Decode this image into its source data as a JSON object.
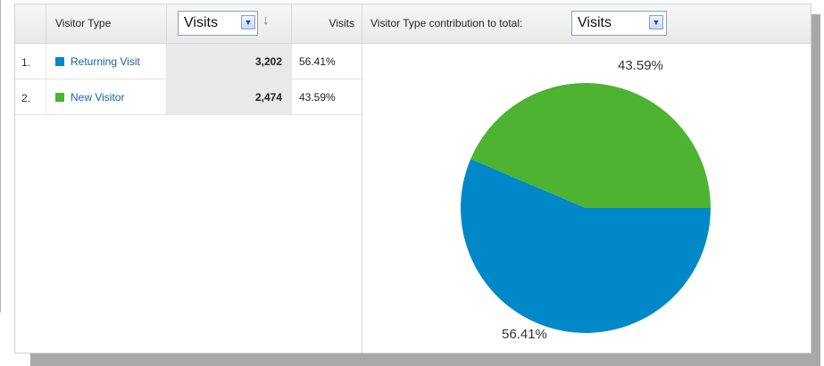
{
  "header": {
    "col_visitor_type": "Visitor Type",
    "metric_select": {
      "value": "Visits"
    },
    "col_visits": "Visits",
    "contribution_label": "Visitor Type contribution to total:",
    "contribution_select": {
      "value": "Visits"
    }
  },
  "rows": [
    {
      "index": "1.",
      "label": "Returning Visit",
      "visits": "3,202",
      "percent": "56.41%",
      "color": "#0088c8"
    },
    {
      "index": "2.",
      "label": "New Visitor",
      "visits": "2,474",
      "percent": "43.59%",
      "color": "#4db330"
    }
  ],
  "chart_data": {
    "type": "pie",
    "labels": [
      "Returning Visit",
      "New Visitor"
    ],
    "values": [
      56.41,
      43.59
    ],
    "value_labels": [
      "56.41%",
      "43.59%"
    ],
    "colors": [
      "#0088c8",
      "#4db330"
    ]
  }
}
